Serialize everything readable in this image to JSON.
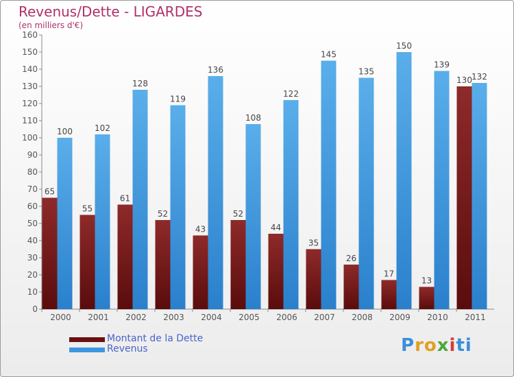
{
  "chart_data": {
    "type": "bar",
    "title": "Revenus/Dette - LIGARDES",
    "subtitle": "(en milliers d'€)",
    "categories": [
      "2000",
      "2001",
      "2002",
      "2003",
      "2004",
      "2005",
      "2006",
      "2007",
      "2008",
      "2009",
      "2010",
      "2011"
    ],
    "series": [
      {
        "name": "Montant de la Dette",
        "color": "#7a1a1a",
        "values": [
          65,
          55,
          61,
          52,
          43,
          52,
          44,
          35,
          26,
          17,
          13,
          130
        ]
      },
      {
        "name": "Revenus",
        "color": "#3d97e0",
        "values": [
          100,
          102,
          128,
          119,
          136,
          108,
          122,
          145,
          135,
          150,
          139,
          132
        ]
      }
    ],
    "ylim": [
      0,
      160
    ],
    "yticks": [
      0,
      10,
      20,
      30,
      40,
      50,
      60,
      70,
      80,
      90,
      100,
      110,
      120,
      130,
      140,
      150,
      160
    ],
    "grid": false,
    "legend_position": "bottom-left"
  },
  "logo": {
    "text": "Proxiti",
    "letters": [
      "P",
      "r",
      "o",
      "x",
      "i",
      "ti"
    ]
  }
}
